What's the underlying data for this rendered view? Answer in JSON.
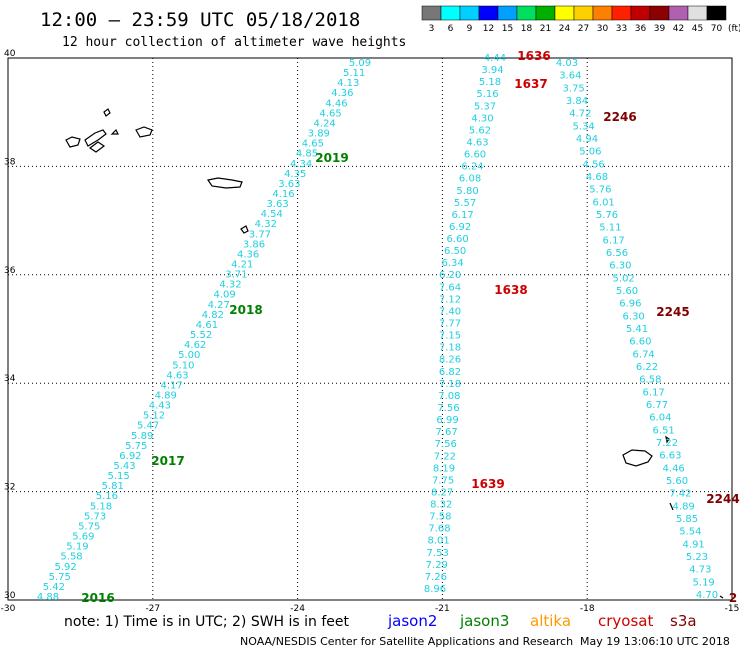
{
  "header": {
    "title": "12:00 – 23:59 UTC 05/18/2018",
    "subtitle": "12 hour collection of altimeter wave heights"
  },
  "scale": {
    "labels": [
      "3",
      "6",
      "9",
      "12",
      "15",
      "18",
      "21",
      "24",
      "27",
      "30",
      "33",
      "36",
      "39",
      "42",
      "45",
      "70"
    ],
    "unit": "(ft)",
    "colors": [
      "#777777",
      "#00ffff",
      "#00d0ff",
      "#0000ff",
      "#00a0ff",
      "#00e060",
      "#00b000",
      "#ffff00",
      "#ffd000",
      "#ff8000",
      "#ff2000",
      "#c00000",
      "#8b0000",
      "#b060b0",
      "#e0e0e0",
      "#000000"
    ]
  },
  "axes": {
    "lat_labels": [
      "40",
      "38",
      "36",
      "34",
      "32",
      "30"
    ],
    "lon_labels": [
      "-30",
      "-27",
      "-24",
      "-21",
      "-18",
      "-15"
    ]
  },
  "tracks": {
    "a": [
      {
        "lon": -23.55,
        "lat": 39.92,
        "v": "5.09"
      },
      {
        "lon": -23.6,
        "lat": 39.82,
        "v": "5.11"
      },
      {
        "lon": -23.65,
        "lat": 39.72,
        "v": "4.13"
      },
      {
        "lon": -23.7,
        "lat": 39.61,
        "v": "4.36"
      },
      {
        "lon": -23.76,
        "lat": 39.51,
        "v": "4.46"
      },
      {
        "lon": -23.81,
        "lat": 39.41,
        "v": "4.65"
      },
      {
        "lon": -23.86,
        "lat": 39.3,
        "v": "4.24"
      },
      {
        "lon": -23.9,
        "lat": 39.2,
        "v": "3.89"
      },
      {
        "lon": -23.95,
        "lat": 39.09,
        "v": "4.65"
      },
      {
        "lon": -24.0,
        "lat": 38.99,
        "v": "4.85"
      },
      {
        "lon": -24.05,
        "lat": 38.88,
        "v": "4.34"
      },
      {
        "lon": -24.1,
        "lat": 38.78,
        "v": "4.35"
      },
      {
        "lon": -24.15,
        "lat": 38.67,
        "v": "3.63"
      },
      {
        "lon": -24.2,
        "lat": 38.57,
        "v": "4.16"
      },
      {
        "lon": -24.25,
        "lat": 38.46,
        "v": "3.63"
      },
      {
        "lon": -24.3,
        "lat": 38.36,
        "v": "4.54"
      },
      {
        "lon": -24.35,
        "lat": 38.26,
        "v": "4.32"
      },
      {
        "lon": -24.4,
        "lat": 38.15,
        "v": "3.77"
      },
      {
        "lon": -24.45,
        "lat": 38.05,
        "v": "3.86"
      },
      {
        "lon": -24.5,
        "lat": 37.94,
        "v": "4.36"
      },
      {
        "lon": -24.55,
        "lat": 37.84,
        "v": "4.21"
      },
      {
        "lon": -24.6,
        "lat": 37.73,
        "v": "3.71"
      },
      {
        "lon": -24.65,
        "lat": 37.63,
        "v": "4.32"
      },
      {
        "lon": -24.7,
        "lat": 37.52,
        "v": "4.09"
      },
      {
        "lon": -24.75,
        "lat": 37.42,
        "v": "4.27"
      },
      {
        "lon": -24.8,
        "lat": 37.31,
        "v": "4.82"
      },
      {
        "lon": -24.85,
        "lat": 37.21,
        "v": "4.61"
      },
      {
        "lon": -24.9,
        "lat": 37.11,
        "v": "5.52"
      },
      {
        "lon": -24.95,
        "lat": 37.0,
        "v": "4.62"
      },
      {
        "lon": -25.0,
        "lat": 36.9,
        "v": "5.00"
      },
      {
        "lon": -25.05,
        "lat": 36.79,
        "v": "5.10"
      },
      {
        "lon": -25.1,
        "lat": 36.69,
        "v": "4.63"
      },
      {
        "lon": -25.15,
        "lat": 36.58,
        "v": "4.17"
      },
      {
        "lon": -25.2,
        "lat": 36.48,
        "v": "4.89"
      },
      {
        "lon": -25.25,
        "lat": 36.37,
        "v": "4.43"
      },
      {
        "lon": -25.3,
        "lat": 36.27,
        "v": "5.12"
      },
      {
        "lon": -25.35,
        "lat": 36.17,
        "v": "5.47"
      },
      {
        "lon": -25.4,
        "lat": 36.06,
        "v": "5.89"
      },
      {
        "lon": -25.45,
        "lat": 35.96,
        "v": "5.75"
      },
      {
        "lon": -25.5,
        "lat": 35.85,
        "v": "6.92"
      },
      {
        "lon": -25.55,
        "lat": 35.75,
        "v": "5.43"
      },
      {
        "lon": -25.6,
        "lat": 35.64,
        "v": "5.15"
      },
      {
        "lon": -25.65,
        "lat": 35.54,
        "v": "5.81"
      },
      {
        "lon": -25.7,
        "lat": 35.43,
        "v": "5.16"
      },
      {
        "lon": -25.75,
        "lat": 35.33,
        "v": "5.18"
      },
      {
        "lon": -25.8,
        "lat": 35.23,
        "v": "5.73"
      },
      {
        "lon": -25.85,
        "lat": 35.12,
        "v": "5.75"
      },
      {
        "lon": -25.9,
        "lat": 35.02,
        "v": "5.69"
      },
      {
        "lon": -25.95,
        "lat": 34.91,
        "v": "5.19"
      },
      {
        "lon": -26.0,
        "lat": 34.81,
        "v": "5.58"
      },
      {
        "lon": -26.05,
        "lat": 34.7,
        "v": "5.92"
      },
      {
        "lon": -26.1,
        "lat": 34.6,
        "v": "5.75"
      },
      {
        "lon": -26.15,
        "lat": 34.49,
        "v": "5.42"
      },
      {
        "lon": -26.2,
        "lat": 34.39,
        "v": "4.88"
      }
    ],
    "b": [
      {
        "v": "4.44"
      },
      {
        "v": "3.94"
      },
      {
        "v": "5.18"
      },
      {
        "v": "5.16"
      },
      {
        "v": "5.37"
      },
      {
        "v": "4.30"
      },
      {
        "v": "5.62"
      },
      {
        "v": "4.63"
      },
      {
        "v": "6.60"
      },
      {
        "v": "6.24"
      },
      {
        "v": "6.08"
      },
      {
        "v": "5.80"
      },
      {
        "v": "5.57"
      },
      {
        "v": "6.17"
      },
      {
        "v": "6.92"
      },
      {
        "v": "6.60"
      },
      {
        "v": "6.50"
      },
      {
        "v": "6.34"
      },
      {
        "v": "6.20"
      },
      {
        "v": "7.64"
      },
      {
        "v": "7.12"
      },
      {
        "v": "7.40"
      },
      {
        "v": "7.77"
      },
      {
        "v": "7.15"
      },
      {
        "v": "7.18"
      },
      {
        "v": "8.26"
      },
      {
        "v": "6.82"
      },
      {
        "v": "7.18"
      },
      {
        "v": "7.08"
      },
      {
        "v": "7.56"
      },
      {
        "v": "6.99"
      },
      {
        "v": "7.67"
      },
      {
        "v": "7.56"
      },
      {
        "v": "7.22"
      },
      {
        "v": "8.19"
      },
      {
        "v": "7.75"
      },
      {
        "v": "8.27"
      },
      {
        "v": "8.32"
      },
      {
        "v": "7.58"
      },
      {
        "v": "7.68"
      },
      {
        "v": "8.01"
      },
      {
        "v": "7.53"
      },
      {
        "v": "7.29"
      },
      {
        "v": "7.26"
      },
      {
        "v": "8.96"
      }
    ],
    "c": [
      {
        "v": "4.03"
      },
      {
        "v": "3.64"
      },
      {
        "v": "3.75"
      },
      {
        "v": "3.84"
      },
      {
        "v": "4.72"
      },
      {
        "v": "5.34"
      },
      {
        "v": "4.94"
      },
      {
        "v": "5.06"
      },
      {
        "v": "4.56"
      },
      {
        "v": "4.68"
      },
      {
        "v": "5.76"
      },
      {
        "v": "6.01"
      },
      {
        "v": "5.76"
      },
      {
        "v": "5.11"
      },
      {
        "v": "6.17"
      },
      {
        "v": "6.56"
      },
      {
        "v": "6.30"
      },
      {
        "v": "5.02"
      },
      {
        "v": "5.60"
      },
      {
        "v": "6.96"
      },
      {
        "v": "6.30"
      },
      {
        "v": "5.41"
      },
      {
        "v": "6.60"
      },
      {
        "v": "6.74"
      },
      {
        "v": "6.22"
      },
      {
        "v": "6.58"
      },
      {
        "v": "6.17"
      },
      {
        "v": "6.77"
      },
      {
        "v": "6.04"
      },
      {
        "v": "6.51"
      },
      {
        "v": "7.22"
      },
      {
        "v": "6.63"
      },
      {
        "v": "4.46"
      },
      {
        "v": "5.60"
      },
      {
        "v": "7.42"
      },
      {
        "v": "4.89"
      },
      {
        "v": "5.85"
      },
      {
        "v": "5.54"
      },
      {
        "v": "4.91"
      },
      {
        "v": "5.23"
      },
      {
        "v": "4.73"
      },
      {
        "v": "5.19"
      },
      {
        "v": "4.70"
      }
    ]
  },
  "time_labels": [
    {
      "text": "2019",
      "color": "#008000"
    },
    {
      "text": "2018",
      "color": "#008000"
    },
    {
      "text": "2017",
      "color": "#008000"
    },
    {
      "text": "2016",
      "color": "#008000"
    },
    {
      "text": "1636",
      "color": "#cc0000"
    },
    {
      "text": "1637",
      "color": "#cc0000"
    },
    {
      "text": "1638",
      "color": "#cc0000"
    },
    {
      "text": "1639",
      "color": "#cc0000"
    },
    {
      "text": "2246",
      "color": "#800000"
    },
    {
      "text": "2245",
      "color": "#800000"
    },
    {
      "text": "2244",
      "color": "#800000"
    },
    {
      "text": "2",
      "color": "#800000"
    }
  ],
  "footer": {
    "note": "note: 1) Time is in UTC; 2) SWH is in feet",
    "satellites": [
      {
        "name": "jason2",
        "color": "#0000ff"
      },
      {
        "name": "jason3",
        "color": "#008000"
      },
      {
        "name": "altika",
        "color": "#ff9900"
      },
      {
        "name": "cryosat",
        "color": "#cc0000"
      },
      {
        "name": "s3a",
        "color": "#800000"
      }
    ],
    "credit": "NOAA/NESDIS Center for Satellite Applications and Research",
    "timestamp": "May 19 13:06:10 UTC 2018"
  }
}
